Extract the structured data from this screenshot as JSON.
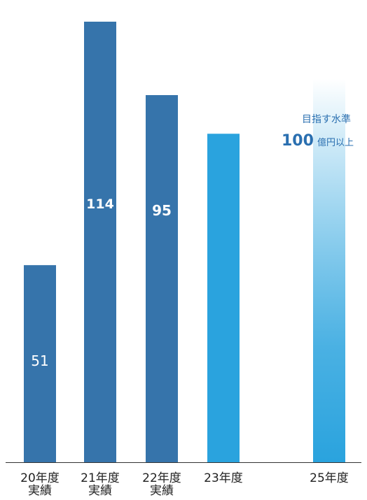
{
  "chart_data": {
    "type": "bar",
    "categories": [
      [
        "20年度",
        "実績"
      ],
      [
        "21年度",
        "実績"
      ],
      [
        "22年度",
        "実績"
      ],
      [
        "23年度"
      ],
      [
        "25年度"
      ]
    ],
    "values": [
      51,
      114,
      95,
      85,
      100
    ],
    "value_labels": [
      "51",
      "114",
      "95",
      "",
      ""
    ],
    "ylim": [
      0,
      114
    ],
    "target": {
      "category_index": 4,
      "caption": "目指す水準",
      "amount": "100",
      "unit": "億円以上"
    },
    "colors": {
      "actual": "#3674ab",
      "forecast": "#2aa3de",
      "target_top": "#ffffff",
      "target_bottom": "#2aa3de",
      "axis": "#333333"
    },
    "grid": false,
    "legend": "none"
  }
}
